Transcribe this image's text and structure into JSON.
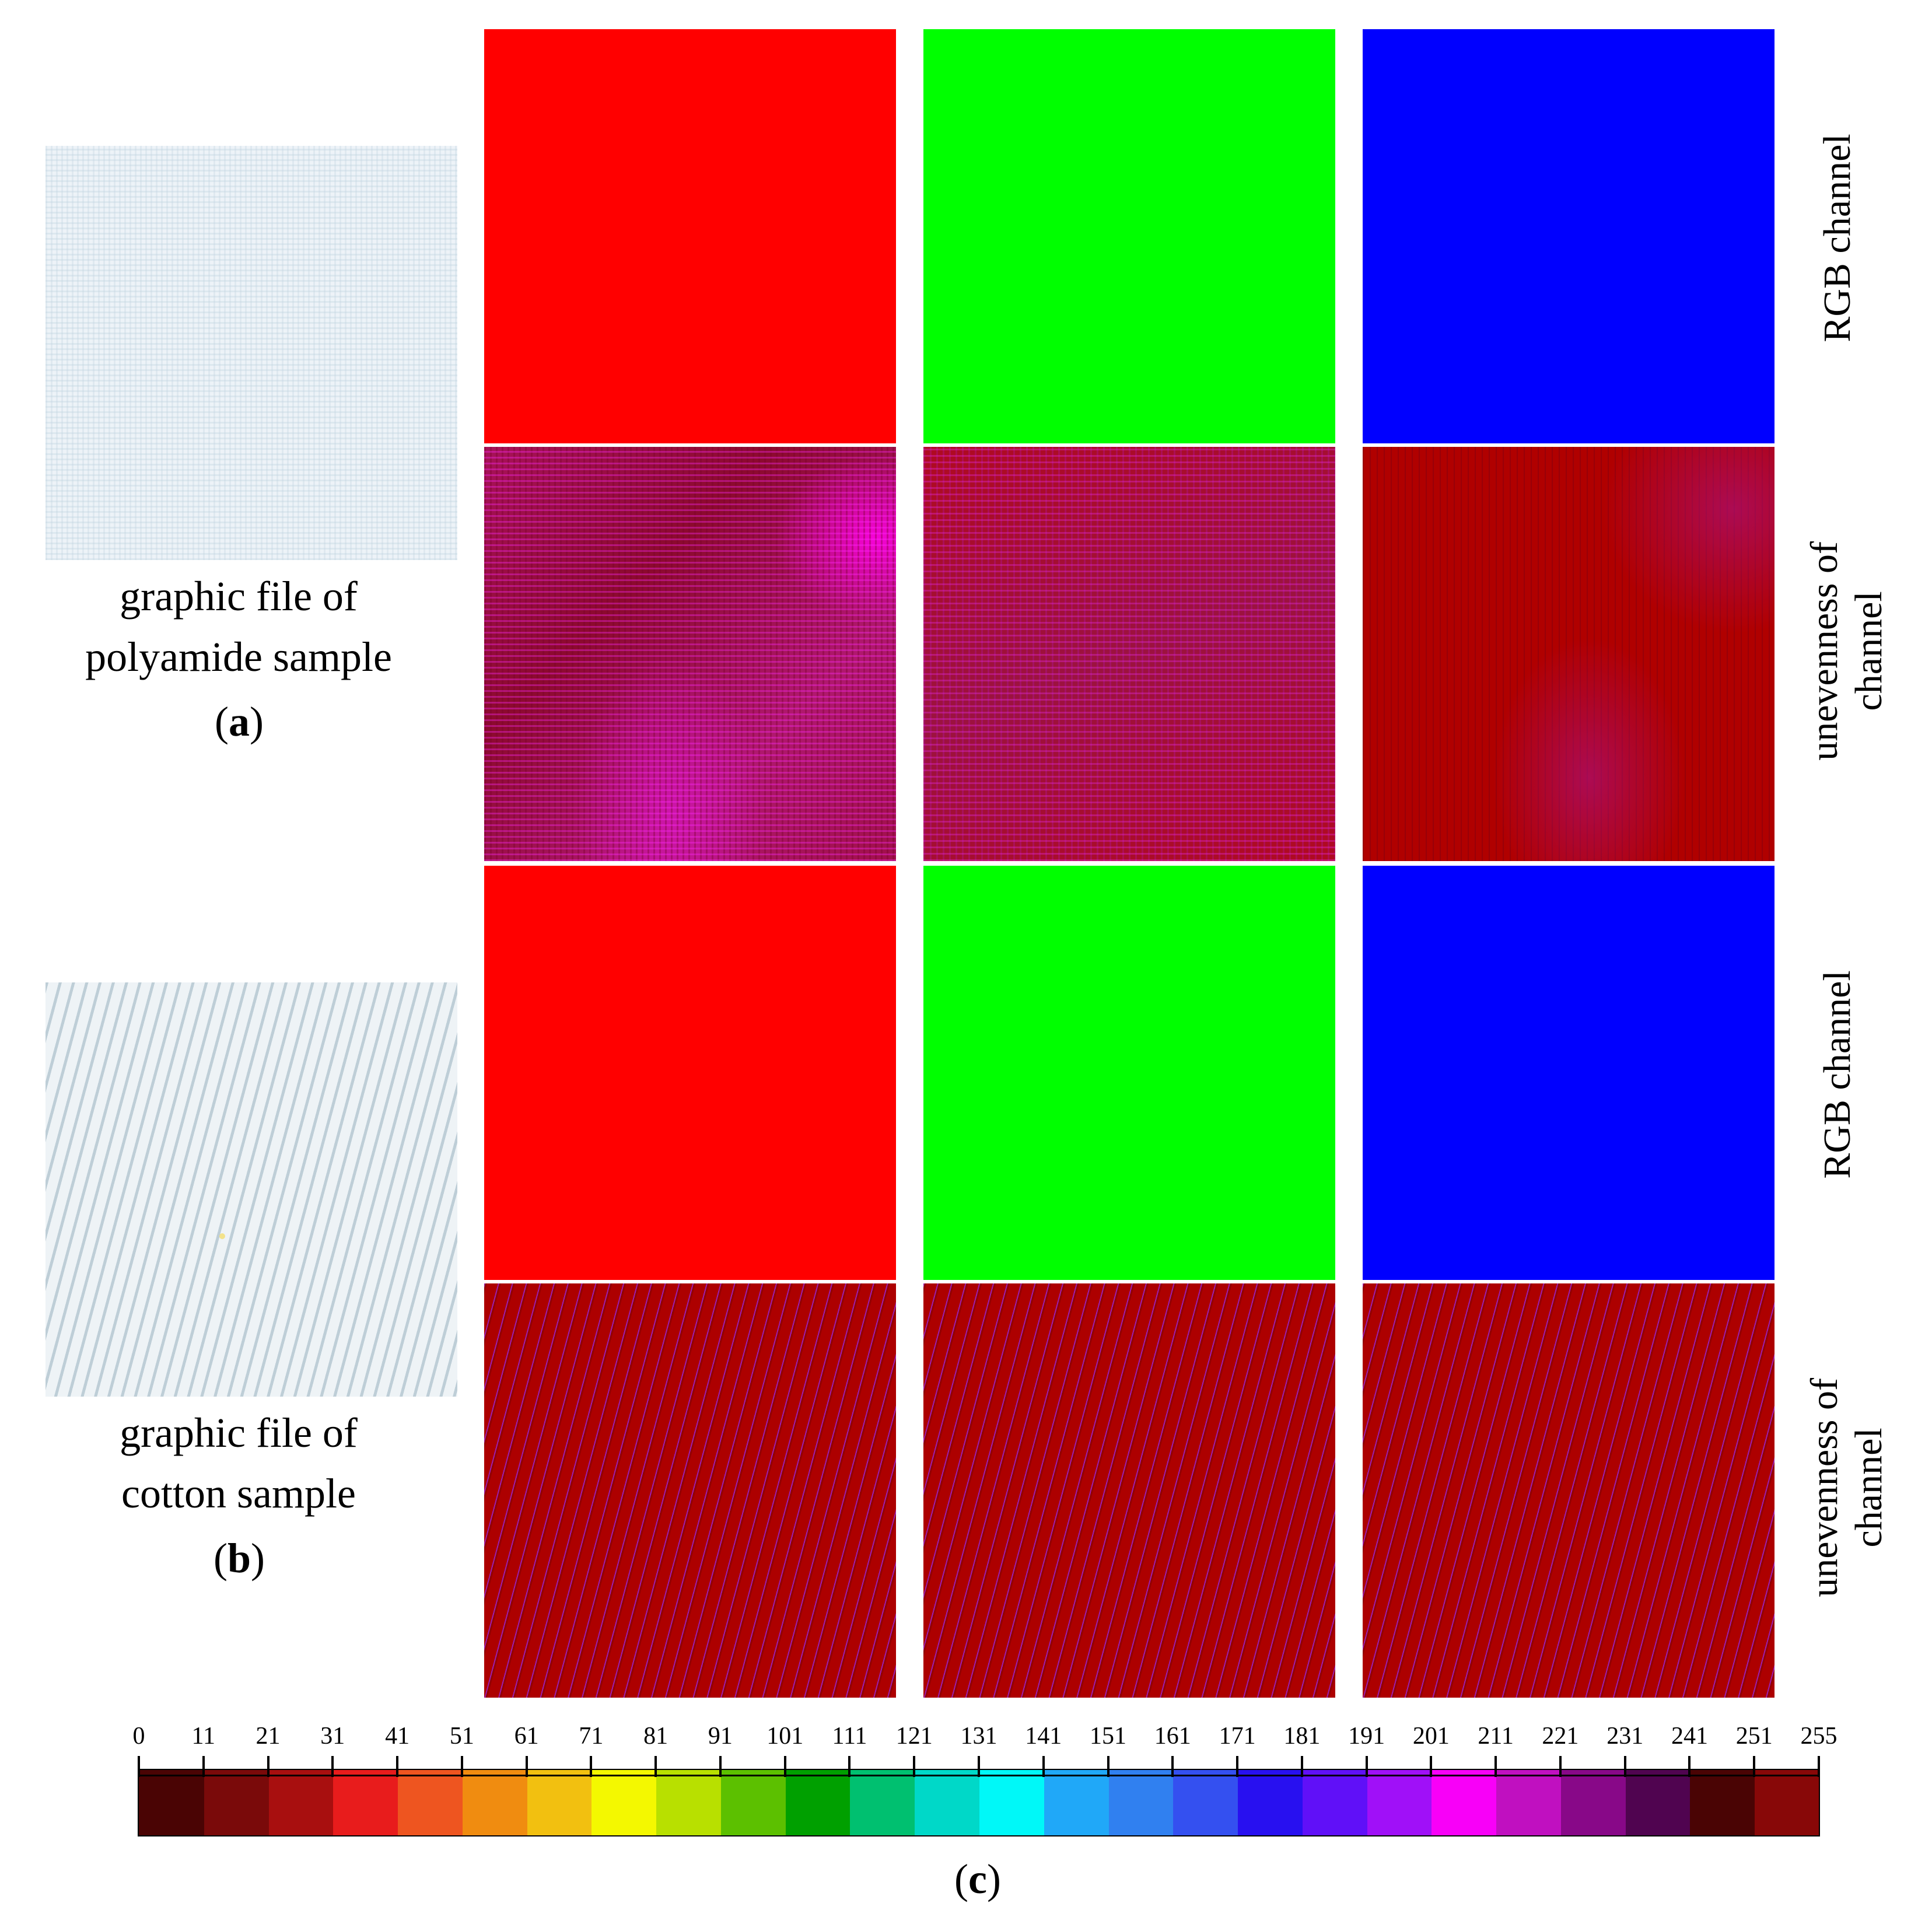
{
  "figure": {
    "sample_a": {
      "caption_line1": "graphic file of",
      "caption_line2": "polyamide sample",
      "label_open": "(",
      "label_letter": "a",
      "label_close": ")"
    },
    "sample_b": {
      "caption_line1": "graphic file of",
      "caption_line2": "cotton sample",
      "label_open": "(",
      "label_letter": "b",
      "label_close": ")"
    },
    "row_labels": {
      "rgb_a": "RGB channel",
      "unev_a_line1": "unevenness of",
      "unev_a_line2": "channel",
      "rgb_b": "RGB channel",
      "unev_b_line1": "unevenness of",
      "unev_b_line2": "channel"
    },
    "colorbar": {
      "ticks": [
        "0",
        "11",
        "21",
        "31",
        "41",
        "51",
        "61",
        "71",
        "81",
        "91",
        "101",
        "111",
        "121",
        "131",
        "141",
        "151",
        "161",
        "171",
        "181",
        "191",
        "201",
        "211",
        "221",
        "231",
        "241",
        "251",
        "255"
      ],
      "colors": [
        "#4a0404",
        "#7a0a0a",
        "#a80f0f",
        "#e81c1c",
        "#ee5520",
        "#f08c10",
        "#f2c010",
        "#f4f800",
        "#b8e000",
        "#5cc000",
        "#00a000",
        "#00c070",
        "#00d8c8",
        "#00f8f8",
        "#20a8f8",
        "#3080f0",
        "#3450f0",
        "#2810f0",
        "#6010f8",
        "#a010f8",
        "#f800f8",
        "#c010c0",
        "#880888",
        "#500450",
        "#4a0404",
        "#880808"
      ],
      "label_open": "(",
      "label_letter": "c",
      "label_close": ")"
    },
    "colors": {
      "red_channel": "#ff0000",
      "green_channel": "#00ff00",
      "blue_channel": "#0000ff"
    }
  }
}
